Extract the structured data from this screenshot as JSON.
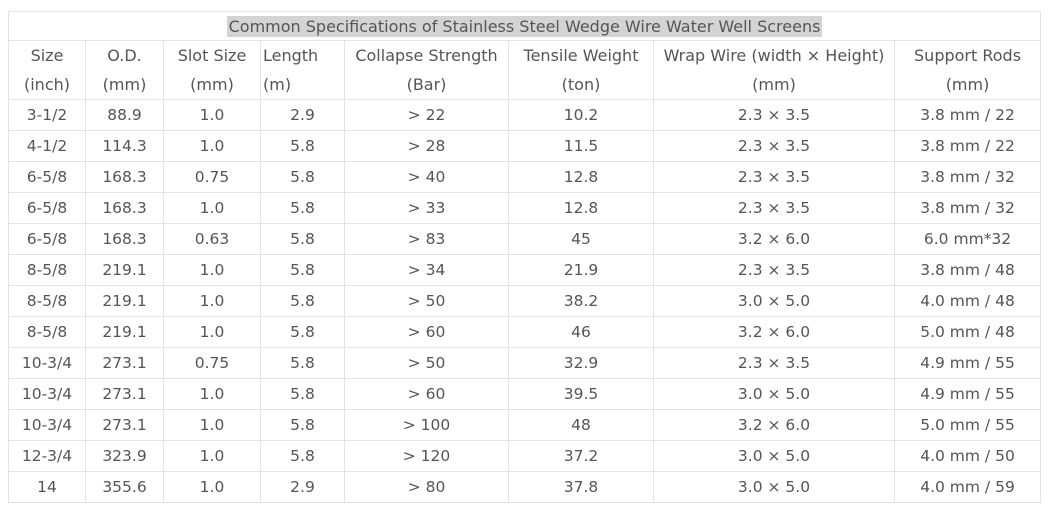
{
  "title": "Common Specifications of Stainless Steel Wedge Wire Water Well Screens",
  "headers_row1": [
    "Size",
    "O.D.",
    "Slot Size",
    "Length",
    "Collapse Strength",
    "Tensile Weight",
    "Wrap Wire (width × Height)",
    "Support Rods"
  ],
  "headers_row2": [
    "(inch)",
    "(mm)",
    "(mm)",
    "(m)",
    "(Bar)",
    "(ton)",
    "(mm)",
    "(mm)"
  ],
  "rows": [
    [
      "3-1/2",
      "88.9",
      "1.0",
      "2.9",
      "> 22",
      "10.2",
      "2.3 × 3.5",
      "3.8 mm / 22"
    ],
    [
      "4-1/2",
      "114.3",
      "1.0",
      "5.8",
      "> 28",
      "11.5",
      "2.3 × 3.5",
      "3.8 mm / 22"
    ],
    [
      "6-5/8",
      "168.3",
      "0.75",
      "5.8",
      "> 40",
      "12.8",
      "2.3 × 3.5",
      "3.8 mm / 32"
    ],
    [
      "6-5/8",
      "168.3",
      "1.0",
      "5.8",
      "> 33",
      "12.8",
      "2.3 × 3.5",
      "3.8 mm / 32"
    ],
    [
      "6-5/8",
      "168.3",
      "0.63",
      "5.8",
      "> 83",
      "45",
      "3.2 × 6.0",
      "6.0 mm*32"
    ],
    [
      "8-5/8",
      "219.1",
      "1.0",
      "5.8",
      "> 34",
      "21.9",
      "2.3 × 3.5",
      "3.8 mm / 48"
    ],
    [
      "8-5/8",
      "219.1",
      "1.0",
      "5.8",
      "> 50",
      "38.2",
      "3.0 × 5.0",
      "4.0 mm / 48"
    ],
    [
      "8-5/8",
      "219.1",
      "1.0",
      "5.8",
      "> 60",
      "46",
      "3.2 × 6.0",
      "5.0 mm / 48"
    ],
    [
      "10-3/4",
      "273.1",
      "0.75",
      "5.8",
      "> 50",
      "32.9",
      "2.3 × 3.5",
      "4.9 mm / 55"
    ],
    [
      "10-3/4",
      "273.1",
      "1.0",
      "5.8",
      "> 60",
      "39.5",
      "3.0 × 5.0",
      "4.9 mm / 55"
    ],
    [
      "10-3/4",
      "273.1",
      "1.0",
      "5.8",
      "> 100",
      "48",
      "3.2 × 6.0",
      "5.0 mm / 55"
    ],
    [
      "12-3/4",
      "323.9",
      "1.0",
      "5.8",
      "> 120",
      "37.2",
      "3.0 × 5.0",
      "4.0 mm / 50"
    ],
    [
      "14",
      "355.6",
      "1.0",
      "2.9",
      "> 80",
      "37.8",
      "3.0 × 5.0",
      "4.0 mm / 59"
    ]
  ]
}
